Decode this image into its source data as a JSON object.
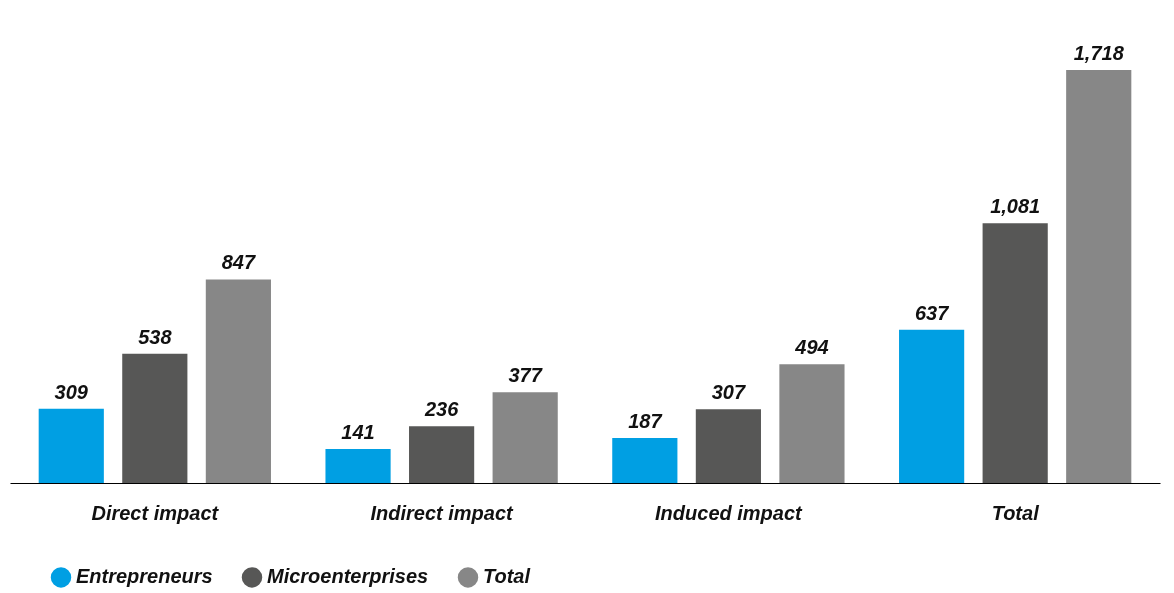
{
  "chart_data": {
    "type": "bar",
    "categories": [
      "Direct impact",
      "Indirect impact",
      "Induced impact",
      "Total"
    ],
    "series": [
      {
        "name": "Entrepreneurs",
        "color": "#009fe3",
        "values": [
          309,
          141,
          187,
          637
        ],
        "value_labels": [
          "309",
          "141",
          "187",
          "637"
        ]
      },
      {
        "name": "Microenterprises",
        "color": "#575756",
        "values": [
          538,
          236,
          307,
          1081
        ],
        "value_labels": [
          "538",
          "236",
          "307",
          "1,081"
        ]
      },
      {
        "name": "Total",
        "color": "#878787",
        "values": [
          847,
          377,
          494,
          1718
        ],
        "value_labels": [
          "847",
          "377",
          "494",
          "1,718"
        ]
      }
    ],
    "legend": "bottom left",
    "grid": false
  }
}
